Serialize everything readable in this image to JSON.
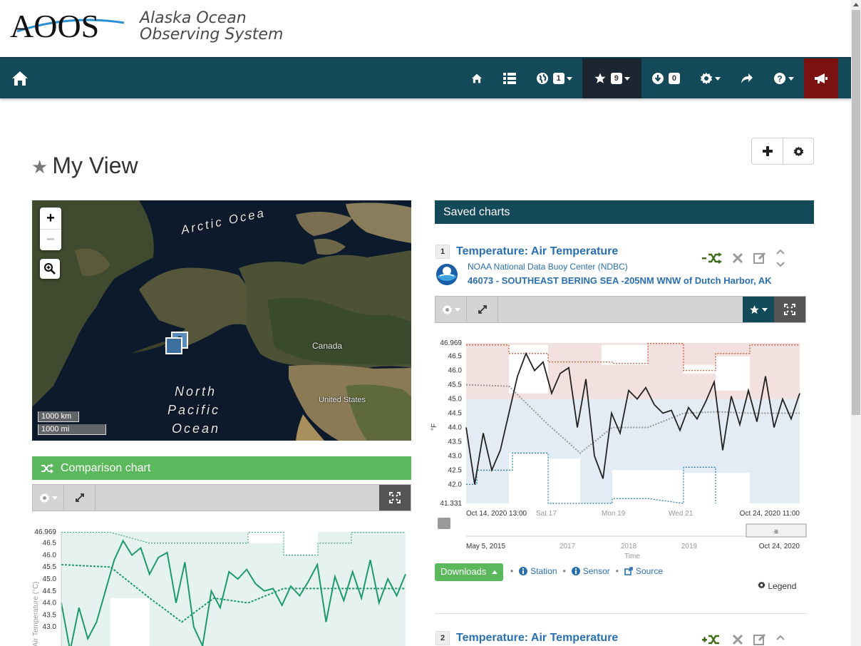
{
  "brand": {
    "logo_text": "AOOS",
    "name_line1": "Alaska Ocean",
    "name_line2": "Observing System"
  },
  "nav": {
    "layers_count": "1",
    "favorites_count": "9",
    "downloads_count": "0"
  },
  "page": {
    "title": "My View"
  },
  "map": {
    "labels": {
      "arctic": "Arctic Ocea",
      "canada": "Canada",
      "us": "United States",
      "north": "North",
      "pacific": "Pacific",
      "ocean": "Ocean"
    },
    "cluster_count": "2",
    "scale_km": "1000 km",
    "scale_mi": "1000 mi"
  },
  "comparison": {
    "title": "Comparison chart",
    "y_label": "Air Temperature (°C)",
    "y_ticks": [
      "46.969",
      "46.5",
      "46.0",
      "45.5",
      "45.0",
      "44.5",
      "44.0",
      "43.5",
      "43.0"
    ]
  },
  "saved": {
    "header": "Saved charts",
    "chart1": {
      "num": "1",
      "title": "Temperature: Air Temperature",
      "provider": "NOAA National Data Buoy Center (NDBC)",
      "station": "46073 - SOUTHEAST BERING SEA -205NM WNW of Dutch Harbor, AK"
    },
    "chart2": {
      "num": "2",
      "title": "Temperature: Air Temperature"
    },
    "downloads_label": "Downloads",
    "links": {
      "station": "Station",
      "sensor": "Sensor",
      "source": "Source"
    },
    "legend_label": "Legend"
  },
  "chart_data": {
    "type": "line",
    "y_ticks": [
      "46.969",
      "46.5",
      "46.0",
      "45.5",
      "45.0",
      "44.5",
      "44.0",
      "43.5",
      "43.0",
      "42.5",
      "42.0",
      "41.331"
    ],
    "y_axis_unit": "°F",
    "ylim": [
      41.331,
      46.969
    ],
    "x_ticks": [
      "Oct 14, 2020 13:00",
      "Sat 17",
      "Mon 19",
      "Wed 21",
      "Oct 24, 2020 11:00"
    ],
    "navigator": {
      "start_label": "May 5, 2015",
      "end_label": "Oct 24, 2020",
      "year_ticks": [
        "2017",
        "2018",
        "2019"
      ],
      "axis_title": "Time"
    },
    "series": [
      {
        "values": [
          44.0,
          42.0,
          43.8,
          42.5,
          43.2,
          44.5,
          45.8,
          46.6,
          46.0,
          46.3,
          45.2,
          45.9,
          46.1,
          44.0,
          45.7,
          43.0,
          42.2,
          44.5,
          43.8,
          45.3,
          45.0,
          45.4,
          44.8,
          44.5,
          44.6,
          43.9,
          44.7,
          44.3,
          44.9,
          45.6,
          43.2,
          45.1,
          44.1,
          45.3,
          44.2,
          45.8,
          44.0,
          45.0,
          44.3,
          45.2
        ]
      }
    ]
  }
}
